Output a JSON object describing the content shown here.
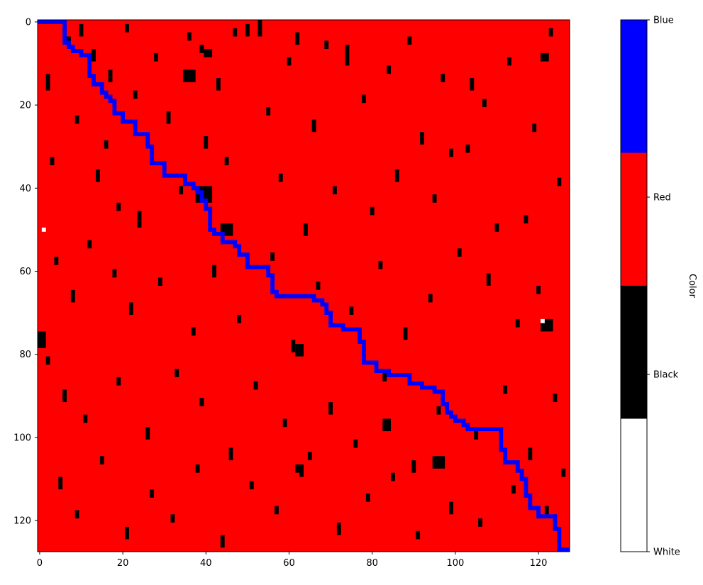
{
  "chart_data": {
    "type": "heatmap",
    "title": "",
    "xlabel": "",
    "ylabel": "",
    "grid_size": [
      128,
      128
    ],
    "xlim": [
      -0.5,
      127.5
    ],
    "ylim": [
      127.5,
      -0.5
    ],
    "x_ticks": [
      0,
      20,
      40,
      60,
      80,
      100,
      120
    ],
    "y_ticks": [
      0,
      20,
      40,
      60,
      80,
      100,
      120
    ],
    "grid": false,
    "colorbar": {
      "label": "Color",
      "ticks": [
        "White",
        "Black",
        "Red",
        "Blue"
      ],
      "colors": {
        "White": "#ffffff",
        "Black": "#000000",
        "Red": "#ff0000",
        "Blue": "#0000ff"
      }
    },
    "background_value": "Red",
    "white_cells": [
      [
        1,
        50
      ],
      [
        121,
        72
      ]
    ],
    "black_segments": [
      [
        10,
        1,
        3
      ],
      [
        21,
        1,
        2
      ],
      [
        13,
        7,
        2
      ],
      [
        7,
        4,
        2
      ],
      [
        17,
        12,
        3
      ],
      [
        28,
        8,
        2
      ],
      [
        36,
        3,
        2
      ],
      [
        50,
        1,
        3
      ],
      [
        53,
        0,
        4
      ],
      [
        62,
        3,
        3
      ],
      [
        69,
        5,
        2
      ],
      [
        74,
        6,
        5
      ],
      [
        89,
        4,
        2
      ],
      [
        97,
        13,
        2
      ],
      [
        104,
        14,
        3
      ],
      [
        113,
        9,
        2
      ],
      [
        123,
        2,
        2
      ],
      [
        2,
        13,
        4
      ],
      [
        9,
        23,
        2
      ],
      [
        16,
        29,
        2
      ],
      [
        23,
        17,
        2
      ],
      [
        31,
        22,
        3
      ],
      [
        39,
        6,
        2
      ],
      [
        43,
        14,
        3
      ],
      [
        47,
        2,
        2
      ],
      [
        55,
        21,
        2
      ],
      [
        60,
        9,
        2
      ],
      [
        66,
        24,
        3
      ],
      [
        78,
        18,
        2
      ],
      [
        84,
        11,
        2
      ],
      [
        92,
        27,
        3
      ],
      [
        99,
        31,
        2
      ],
      [
        107,
        19,
        2
      ],
      [
        119,
        25,
        2
      ],
      [
        3,
        33,
        2
      ],
      [
        14,
        36,
        3
      ],
      [
        19,
        44,
        2
      ],
      [
        24,
        46,
        4
      ],
      [
        34,
        40,
        2
      ],
      [
        40,
        28,
        3
      ],
      [
        45,
        33,
        2
      ],
      [
        58,
        37,
        2
      ],
      [
        64,
        49,
        3
      ],
      [
        71,
        40,
        2
      ],
      [
        80,
        45,
        2
      ],
      [
        86,
        36,
        3
      ],
      [
        95,
        42,
        2
      ],
      [
        103,
        30,
        2
      ],
      [
        110,
        49,
        2
      ],
      [
        117,
        47,
        2
      ],
      [
        125,
        38,
        2
      ],
      [
        4,
        57,
        2
      ],
      [
        8,
        65,
        3
      ],
      [
        12,
        53,
        2
      ],
      [
        18,
        60,
        2
      ],
      [
        22,
        68,
        3
      ],
      [
        29,
        62,
        2
      ],
      [
        37,
        74,
        2
      ],
      [
        42,
        59,
        3
      ],
      [
        48,
        71,
        2
      ],
      [
        56,
        56,
        2
      ],
      [
        61,
        77,
        3
      ],
      [
        67,
        63,
        2
      ],
      [
        75,
        69,
        2
      ],
      [
        82,
        58,
        2
      ],
      [
        88,
        74,
        3
      ],
      [
        94,
        66,
        2
      ],
      [
        101,
        55,
        2
      ],
      [
        108,
        61,
        3
      ],
      [
        115,
        72,
        2
      ],
      [
        120,
        64,
        2
      ],
      [
        2,
        81,
        2
      ],
      [
        6,
        89,
        3
      ],
      [
        11,
        95,
        2
      ],
      [
        19,
        86,
        2
      ],
      [
        26,
        98,
        3
      ],
      [
        33,
        84,
        2
      ],
      [
        39,
        91,
        2
      ],
      [
        46,
        103,
        3
      ],
      [
        52,
        87,
        2
      ],
      [
        59,
        96,
        2
      ],
      [
        63,
        108,
        2
      ],
      [
        70,
        92,
        3
      ],
      [
        76,
        101,
        2
      ],
      [
        83,
        85,
        2
      ],
      [
        90,
        106,
        3
      ],
      [
        96,
        93,
        2
      ],
      [
        105,
        99,
        2
      ],
      [
        112,
        88,
        2
      ],
      [
        118,
        103,
        3
      ],
      [
        124,
        90,
        2
      ],
      [
        5,
        110,
        3
      ],
      [
        9,
        118,
        2
      ],
      [
        15,
        105,
        2
      ],
      [
        21,
        122,
        3
      ],
      [
        27,
        113,
        2
      ],
      [
        32,
        119,
        2
      ],
      [
        38,
        107,
        2
      ],
      [
        44,
        124,
        3
      ],
      [
        51,
        111,
        2
      ],
      [
        57,
        117,
        2
      ],
      [
        65,
        104,
        2
      ],
      [
        72,
        121,
        3
      ],
      [
        79,
        114,
        2
      ],
      [
        85,
        109,
        2
      ],
      [
        91,
        123,
        2
      ],
      [
        99,
        116,
        3
      ],
      [
        106,
        120,
        2
      ],
      [
        114,
        112,
        2
      ],
      [
        122,
        117,
        2
      ],
      [
        126,
        108,
        2
      ]
    ],
    "black_blocks": [
      [
        121,
        72,
        3,
        3
      ],
      [
        38,
        40,
        4,
        4
      ],
      [
        44,
        49,
        3,
        3
      ],
      [
        62,
        78,
        2,
        3
      ],
      [
        40,
        7,
        2,
        2
      ],
      [
        12,
        8,
        2,
        2
      ],
      [
        0,
        75,
        2,
        4
      ],
      [
        121,
        8,
        2,
        2
      ],
      [
        95,
        105,
        3,
        3
      ],
      [
        62,
        107,
        2,
        2
      ],
      [
        35,
        12,
        3,
        3
      ],
      [
        83,
        96,
        2,
        3
      ]
    ],
    "blue_path": [
      [
        0,
        0
      ],
      [
        6,
        0
      ],
      [
        6,
        5
      ],
      [
        7,
        5
      ],
      [
        7,
        6
      ],
      [
        8,
        6
      ],
      [
        8,
        7
      ],
      [
        10,
        7
      ],
      [
        10,
        8
      ],
      [
        12,
        8
      ],
      [
        12,
        13
      ],
      [
        13,
        13
      ],
      [
        13,
        15
      ],
      [
        15,
        15
      ],
      [
        15,
        17
      ],
      [
        16,
        17
      ],
      [
        16,
        18
      ],
      [
        17,
        18
      ],
      [
        17,
        19
      ],
      [
        18,
        19
      ],
      [
        18,
        22
      ],
      [
        20,
        22
      ],
      [
        20,
        24
      ],
      [
        23,
        24
      ],
      [
        23,
        27
      ],
      [
        26,
        27
      ],
      [
        26,
        30
      ],
      [
        27,
        30
      ],
      [
        27,
        34
      ],
      [
        30,
        34
      ],
      [
        30,
        37
      ],
      [
        35,
        37
      ],
      [
        35,
        39
      ],
      [
        37,
        39
      ],
      [
        37,
        40
      ],
      [
        38,
        40
      ],
      [
        38,
        41
      ],
      [
        39,
        41
      ],
      [
        39,
        43
      ],
      [
        40,
        43
      ],
      [
        40,
        45
      ],
      [
        41,
        45
      ],
      [
        41,
        50
      ],
      [
        42,
        50
      ],
      [
        42,
        51
      ],
      [
        44,
        51
      ],
      [
        44,
        53
      ],
      [
        47,
        53
      ],
      [
        47,
        54
      ],
      [
        48,
        54
      ],
      [
        48,
        56
      ],
      [
        50,
        56
      ],
      [
        50,
        59
      ],
      [
        55,
        59
      ],
      [
        55,
        61
      ],
      [
        56,
        61
      ],
      [
        56,
        65
      ],
      [
        57,
        65
      ],
      [
        57,
        66
      ],
      [
        66,
        66
      ],
      [
        66,
        67
      ],
      [
        68,
        67
      ],
      [
        68,
        68
      ],
      [
        69,
        68
      ],
      [
        69,
        70
      ],
      [
        70,
        70
      ],
      [
        70,
        73
      ],
      [
        73,
        73
      ],
      [
        73,
        74
      ],
      [
        77,
        74
      ],
      [
        77,
        77
      ],
      [
        78,
        77
      ],
      [
        78,
        82
      ],
      [
        81,
        82
      ],
      [
        81,
        84
      ],
      [
        84,
        84
      ],
      [
        84,
        85
      ],
      [
        89,
        85
      ],
      [
        89,
        87
      ],
      [
        92,
        87
      ],
      [
        92,
        88
      ],
      [
        95,
        88
      ],
      [
        95,
        89
      ],
      [
        97,
        89
      ],
      [
        97,
        92
      ],
      [
        98,
        92
      ],
      [
        98,
        94
      ],
      [
        99,
        94
      ],
      [
        99,
        95
      ],
      [
        100,
        95
      ],
      [
        100,
        96
      ],
      [
        102,
        96
      ],
      [
        102,
        97
      ],
      [
        103,
        97
      ],
      [
        103,
        98
      ],
      [
        111,
        98
      ],
      [
        111,
        103
      ],
      [
        112,
        103
      ],
      [
        112,
        106
      ],
      [
        115,
        106
      ],
      [
        115,
        108
      ],
      [
        116,
        108
      ],
      [
        116,
        110
      ],
      [
        117,
        110
      ],
      [
        117,
        114
      ],
      [
        118,
        114
      ],
      [
        118,
        117
      ],
      [
        120,
        117
      ],
      [
        120,
        119
      ],
      [
        124,
        119
      ],
      [
        124,
        122
      ],
      [
        125,
        122
      ],
      [
        125,
        127
      ],
      [
        127,
        127
      ]
    ]
  }
}
